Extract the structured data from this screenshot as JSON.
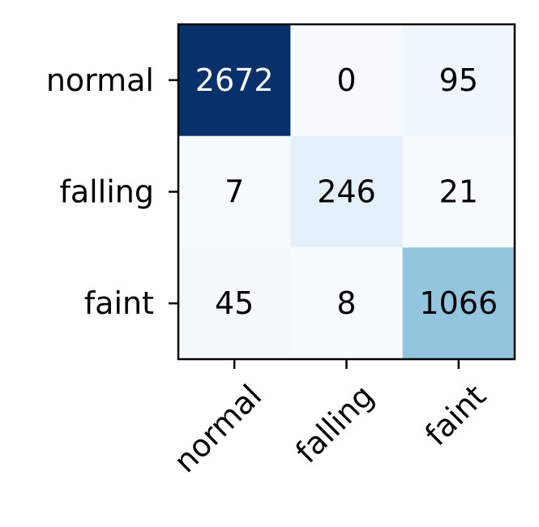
{
  "chart_data": {
    "type": "heatmap",
    "title": "",
    "xlabel": "",
    "ylabel": "",
    "row_labels": [
      "normal",
      "falling",
      "faint"
    ],
    "col_labels": [
      "normal",
      "falling",
      "faint"
    ],
    "matrix": [
      [
        2672,
        0,
        95
      ],
      [
        7,
        246,
        21
      ],
      [
        45,
        8,
        1066
      ]
    ],
    "colormap": "Blues",
    "value_range": [
      0,
      2672
    ],
    "cell_text_colors": {
      "dark_background": "#ffffff",
      "light_background": "#000000"
    }
  }
}
